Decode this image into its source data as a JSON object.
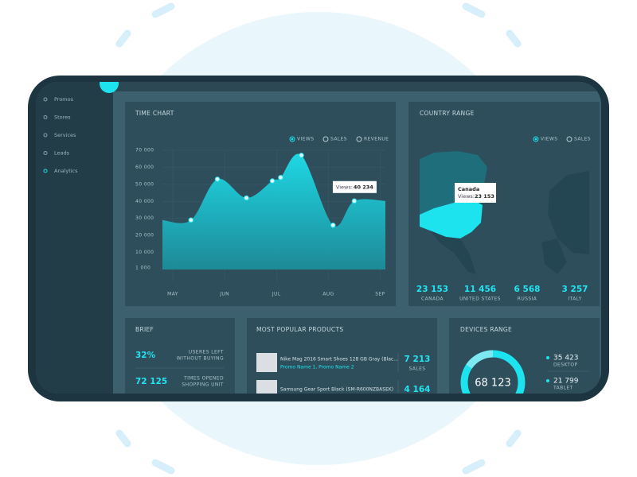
{
  "sidebar": {
    "items": [
      "Promos",
      "Stores",
      "Services",
      "Leads",
      "Analytics"
    ],
    "active": 4
  },
  "chart_data": {
    "type": "area",
    "title": "TIME CHART",
    "legend_options": [
      "VIEWS",
      "SALES",
      "REVENUE"
    ],
    "selected_option": 0,
    "x": [
      4.8,
      5.35,
      5.86,
      6.42,
      6.92,
      7.08,
      7.48,
      8.09,
      8.5,
      9.1
    ],
    "series": [
      {
        "name": "VIEWS",
        "color": "#1de3ef",
        "values": [
          29000,
          29000,
          53000,
          42000,
          52000,
          54000,
          67000,
          26000,
          40234,
          40234
        ]
      }
    ],
    "markers": [
      1,
      2,
      3,
      4,
      5,
      6,
      7,
      8
    ],
    "xlim": [
      4.8,
      9.1
    ],
    "xticks": [
      {
        "value": 5,
        "label": "MAY"
      },
      {
        "value": 6,
        "label": "JUN"
      },
      {
        "value": 7,
        "label": "JUL"
      },
      {
        "value": 8,
        "label": "AUG"
      },
      {
        "value": 9,
        "label": "SEP"
      }
    ],
    "ylim": [
      0,
      70000
    ],
    "yticks": [
      {
        "value": 70000,
        "label": "70 000"
      },
      {
        "value": 60000,
        "label": "60 000"
      },
      {
        "value": 50000,
        "label": "50 000"
      },
      {
        "value": 40000,
        "label": "40 000"
      },
      {
        "value": 30000,
        "label": "30 000"
      },
      {
        "value": 20000,
        "label": "20 000"
      },
      {
        "value": 10000,
        "label": "10 000"
      },
      {
        "value": 1000,
        "label": "1 000"
      }
    ],
    "grid": true,
    "tooltip": {
      "label": "Views:",
      "value": "40 234",
      "point": 8
    }
  },
  "country_range": {
    "title": "COUNTRY RANGE",
    "legend_options": [
      "VIEWS",
      "SALES"
    ],
    "tooltip": {
      "country": "Canada",
      "label": "Views:",
      "value": "23 153"
    },
    "stats": [
      {
        "value": "23 153",
        "label": "CANADA"
      },
      {
        "value": "11 456",
        "label": "UNITED STATES"
      },
      {
        "value": "6 568",
        "label": "RUSSIA"
      },
      {
        "value": "3 257",
        "label": "ITALY"
      }
    ]
  },
  "brief": {
    "title": "BRIEF",
    "rows": [
      {
        "value": "32%",
        "label": [
          "USERES LEFT",
          "WITHOUT BUYING"
        ]
      },
      {
        "value": "72 125",
        "label": [
          "TIMES OPENED",
          "SHOPPING UNIT"
        ]
      }
    ]
  },
  "products": {
    "title": "MOST POPULAR PRODUCTS",
    "rows": [
      {
        "name": "Nike Mag 2016 Smart Shoes 128 GB Gray (Blac...",
        "promos": "Promo Name 1, Promo Name 2",
        "value": "7 213",
        "unit": "SALES"
      },
      {
        "name": "Samsung Gear Sport Black (SM-R600NZBASEK)",
        "value": "4 164"
      }
    ]
  },
  "devices": {
    "title": "DEVICES RANGE",
    "total": "68 123",
    "items": [
      {
        "value": "35 423",
        "label": "DESKTOP"
      },
      {
        "value": "21 799",
        "label": "TABLET"
      }
    ]
  }
}
